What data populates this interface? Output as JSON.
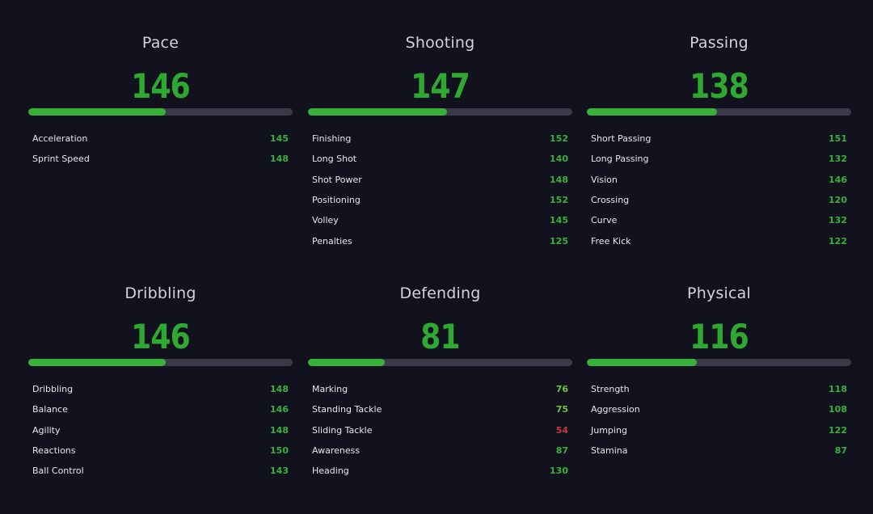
{
  "colors": {
    "background": "#12121f",
    "elite": "#2fa832",
    "high": "#38b13a",
    "good": "#6fc63a",
    "low": "#c23a3a",
    "track": "#3a3a48"
  },
  "categories": [
    {
      "title": "Pace",
      "rating": "146",
      "fill_percent": 52,
      "stats": [
        {
          "name": "Acceleration",
          "value": "145",
          "tone": "high"
        },
        {
          "name": "Sprint Speed",
          "value": "148",
          "tone": "high"
        }
      ]
    },
    {
      "title": "Shooting",
      "rating": "147",
      "fill_percent": 52.5,
      "stats": [
        {
          "name": "Finishing",
          "value": "152",
          "tone": "high"
        },
        {
          "name": "Long Shot",
          "value": "140",
          "tone": "high"
        },
        {
          "name": "Shot Power",
          "value": "148",
          "tone": "high"
        },
        {
          "name": "Positioning",
          "value": "152",
          "tone": "high"
        },
        {
          "name": "Volley",
          "value": "145",
          "tone": "high"
        },
        {
          "name": "Penalties",
          "value": "125",
          "tone": "high"
        }
      ]
    },
    {
      "title": "Passing",
      "rating": "138",
      "fill_percent": 49.3,
      "stats": [
        {
          "name": "Short Passing",
          "value": "151",
          "tone": "high"
        },
        {
          "name": "Long Passing",
          "value": "132",
          "tone": "high"
        },
        {
          "name": "Vision",
          "value": "146",
          "tone": "high"
        },
        {
          "name": "Crossing",
          "value": "120",
          "tone": "high"
        },
        {
          "name": "Curve",
          "value": "132",
          "tone": "high"
        },
        {
          "name": "Free Kick",
          "value": "122",
          "tone": "high"
        }
      ]
    },
    {
      "title": "Dribbling",
      "rating": "146",
      "fill_percent": 52,
      "stats": [
        {
          "name": "Dribbling",
          "value": "148",
          "tone": "high"
        },
        {
          "name": "Balance",
          "value": "146",
          "tone": "high"
        },
        {
          "name": "Agility",
          "value": "148",
          "tone": "high"
        },
        {
          "name": "Reactions",
          "value": "150",
          "tone": "high"
        },
        {
          "name": "Ball Control",
          "value": "143",
          "tone": "high"
        }
      ]
    },
    {
      "title": "Defending",
      "rating": "81",
      "fill_percent": 29,
      "stats": [
        {
          "name": "Marking",
          "value": "76",
          "tone": "good"
        },
        {
          "name": "Standing Tackle",
          "value": "75",
          "tone": "good"
        },
        {
          "name": "Sliding Tackle",
          "value": "54",
          "tone": "low"
        },
        {
          "name": "Awareness",
          "value": "87",
          "tone": "high"
        },
        {
          "name": "Heading",
          "value": "130",
          "tone": "high"
        }
      ]
    },
    {
      "title": "Physical",
      "rating": "116",
      "fill_percent": 41.5,
      "stats": [
        {
          "name": "Strength",
          "value": "118",
          "tone": "high"
        },
        {
          "name": "Aggression",
          "value": "108",
          "tone": "high"
        },
        {
          "name": "Jumping",
          "value": "122",
          "tone": "high"
        },
        {
          "name": "Stamina",
          "value": "87",
          "tone": "high"
        }
      ]
    }
  ]
}
